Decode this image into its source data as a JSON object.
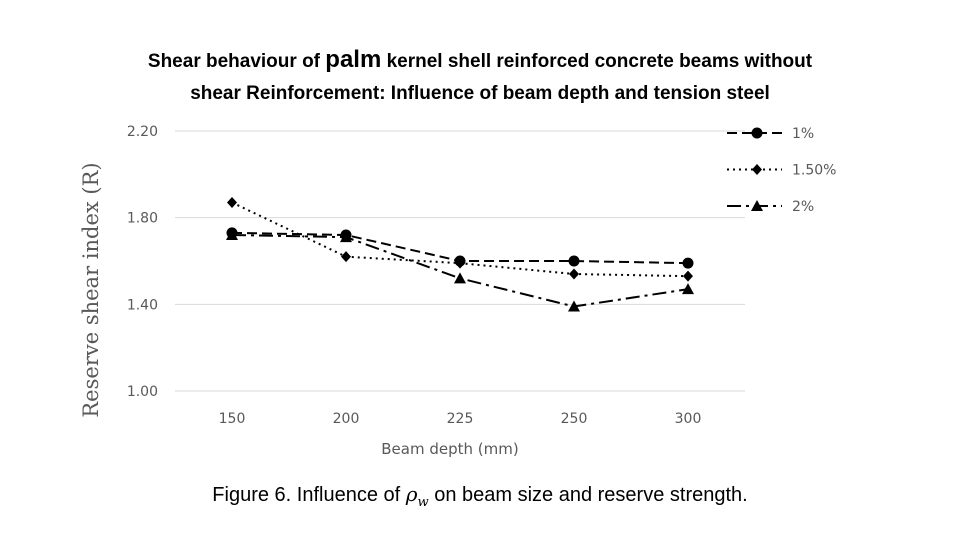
{
  "title": {
    "line1_a": "Shear behaviour of ",
    "line1_big": "palm",
    "line1_b": " kernel shell reinforced concrete beams without",
    "line2": "shear Reinforcement: Influence of beam depth and tension steel"
  },
  "caption": {
    "before": "Figure 6. Influence of ",
    "rho": "ρ",
    "sub": "w",
    "after": " on beam size and reserve strength."
  },
  "chart_data": {
    "type": "line",
    "categories": [
      "150",
      "200",
      "225",
      "250",
      "300"
    ],
    "ytick_labels": [
      "1.00",
      "1.40",
      "1.80",
      "2.20"
    ],
    "yticks": [
      1.0,
      1.4,
      1.8,
      2.2
    ],
    "ylim": [
      1.0,
      2.2
    ],
    "xlabel": "Beam depth (mm)",
    "ylabel": "Reserve shear index (R)",
    "grid": "horizontal",
    "legend_position": "top-right",
    "series": [
      {
        "name": "1%",
        "values": [
          1.73,
          1.72,
          1.6,
          1.6,
          1.59
        ],
        "marker": "circle",
        "dash": "dashed",
        "color": "#000000"
      },
      {
        "name": "1.50%",
        "values": [
          1.87,
          1.62,
          1.59,
          1.54,
          1.53
        ],
        "marker": "diamond",
        "dash": "dotted",
        "color": "#000000"
      },
      {
        "name": "2%",
        "values": [
          1.72,
          1.71,
          1.52,
          1.39,
          1.47
        ],
        "marker": "triangle",
        "dash": "dashdot",
        "color": "#000000"
      }
    ]
  }
}
